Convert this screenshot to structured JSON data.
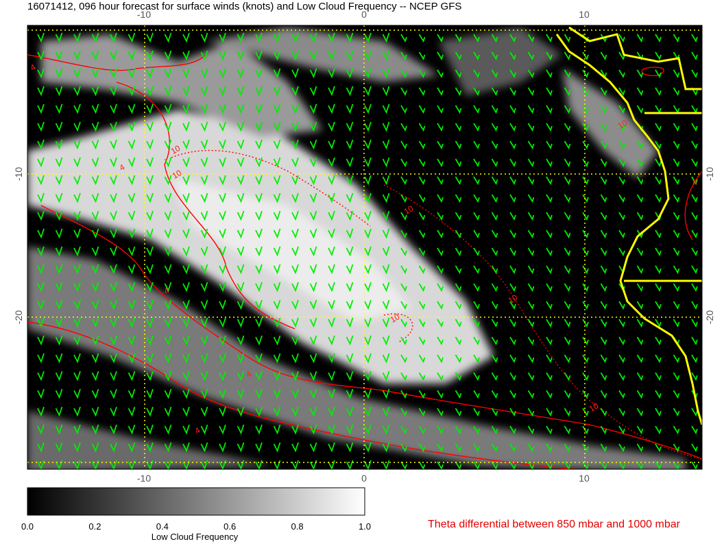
{
  "title": "16071412, 096 hour forecast for surface winds (knots) and Low Cloud Frequency -- NCEP GFS",
  "lon_ticks": [
    -10,
    0,
    10
  ],
  "lat_ticks": [
    -10,
    -20
  ],
  "colorbar": {
    "label": "Low Cloud Frequency",
    "ticks": [
      {
        "value": 0,
        "label": "0.0"
      },
      {
        "value": 0.2,
        "label": "0.2"
      },
      {
        "value": 0.4,
        "label": "0.4"
      },
      {
        "value": 0.6,
        "label": "0.6"
      },
      {
        "value": 0.8,
        "label": "0.8"
      },
      {
        "value": 1,
        "label": "1.0"
      }
    ]
  },
  "contour_caption": "Theta differential between 850 mbar and 1000 mbar",
  "contour_labels": [
    4,
    4,
    10,
    10,
    10,
    10,
    10,
    4,
    4,
    4,
    10,
    10,
    4
  ]
}
